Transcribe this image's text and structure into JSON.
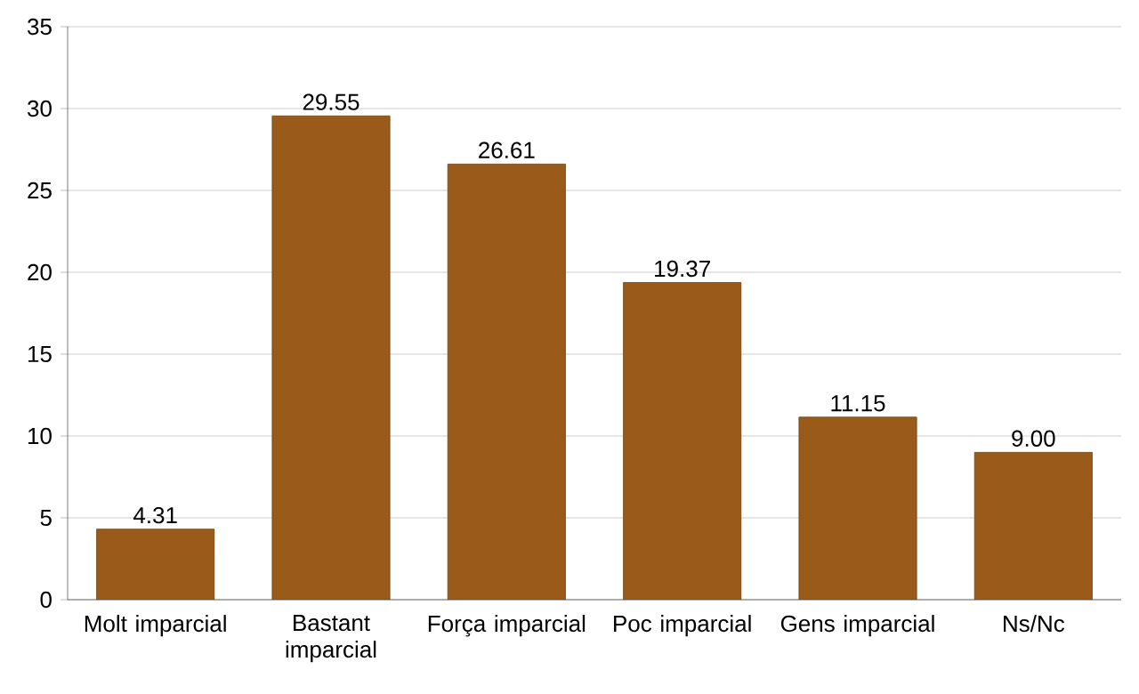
{
  "chart_data": {
    "type": "bar",
    "categories": [
      "Molt imparcial",
      "Bastant imparcial",
      "Força imparcial",
      "Poc imparcial",
      "Gens imparcial",
      "Ns/Nc"
    ],
    "values": [
      4.31,
      29.55,
      26.61,
      19.37,
      11.15,
      9.0
    ],
    "value_labels": [
      "4.31",
      "29.55",
      "26.61",
      "19.37",
      "11.15",
      "9.00"
    ],
    "color": "#9a5b1a",
    "ylim": [
      0,
      35
    ],
    "yticks": [
      0,
      5,
      10,
      15,
      20,
      25,
      30,
      35
    ],
    "grid": "y"
  }
}
